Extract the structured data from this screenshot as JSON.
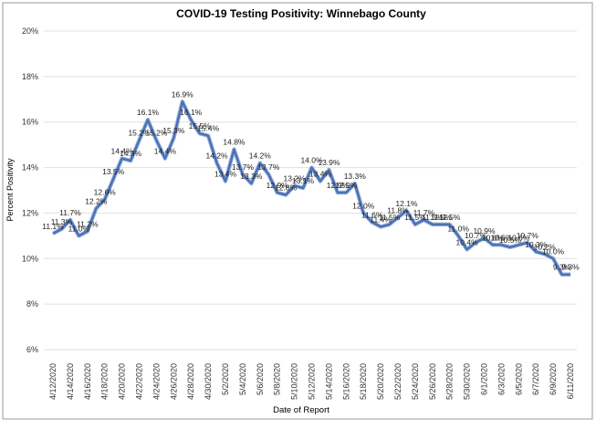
{
  "chart_data": {
    "type": "line",
    "title": "COVID-19 Testing Positivity: Winnebago County",
    "x_label": "Date of Report",
    "y_label": "Percent Positivity",
    "categories": [
      "4/12/2020",
      null,
      "4/14/2020",
      null,
      "4/16/2020",
      null,
      "4/18/2020",
      null,
      "4/20/2020",
      null,
      "4/22/2020",
      null,
      "4/24/2020",
      null,
      "4/26/2020",
      null,
      "4/28/2020",
      null,
      "4/30/2020",
      null,
      "5/2/2020",
      null,
      "5/4/2020",
      null,
      "5/6/2020",
      null,
      "5/8/2020",
      null,
      "5/10/2020",
      null,
      "5/12/2020",
      null,
      "5/14/2020",
      null,
      "5/16/2020",
      null,
      "5/18/2020",
      null,
      "5/20/2020",
      null,
      "5/22/2020",
      null,
      "5/24/2020",
      null,
      "5/26/2020",
      null,
      "5/28/2020",
      null,
      "5/30/2020",
      null,
      "6/1/2020",
      null,
      "6/3/2020",
      null,
      "6/5/2020",
      null,
      "6/7/2020",
      null,
      "6/9/2020",
      null,
      "6/11/2020"
    ],
    "series": [
      {
        "name": "Percent Positivity",
        "color": "#4a72b8",
        "values": [
          11.1,
          11.3,
          11.7,
          11.0,
          11.2,
          12.2,
          12.6,
          13.5,
          14.4,
          14.3,
          15.2,
          16.1,
          15.2,
          14.4,
          15.3,
          16.9,
          16.1,
          15.5,
          15.4,
          14.2,
          13.4,
          14.8,
          13.7,
          13.3,
          14.2,
          13.7,
          12.9,
          12.8,
          13.2,
          13.1,
          14.0,
          13.4,
          13.9,
          12.9,
          12.9,
          13.3,
          12.0,
          11.6,
          11.4,
          11.5,
          11.8,
          12.1,
          11.5,
          11.7,
          11.5,
          11.5,
          11.5,
          11.0,
          10.4,
          10.7,
          10.9,
          10.6,
          10.6,
          10.5,
          10.6,
          10.7,
          10.3,
          10.2,
          10.0,
          9.3,
          9.3
        ],
        "value_labels": [
          "11.1%",
          "11.3%",
          "11.7%",
          "11.0%",
          "11.2%",
          "12.2%",
          "12.6%",
          "13.5%",
          "14.4%",
          "14.3%",
          "15.2%",
          "16.1%",
          "15.2%",
          "14.4%",
          "15.3%",
          "16.9%",
          "16.1%",
          "15.5%",
          "15.4%",
          "14.2%",
          "13.4%",
          "14.8%",
          "13.7%",
          "13.3%",
          "14.2%",
          "13.7%",
          "12.9%",
          "12.8%",
          "13.2%",
          "13.1%",
          "14.0%",
          "13.4%",
          "13.9%",
          "12.9%",
          "12.9%",
          "13.3%",
          "12.0%",
          "11.6%",
          "11.4%",
          "11.5%",
          "11.8%",
          "12.1%",
          "11.5%",
          "11.7%",
          "11.5%",
          "11.5%",
          "11.5%",
          "11.0%",
          "10.4%",
          "10.7%",
          "10.9%",
          "10.6%",
          "10.6%",
          "10.5%",
          "10.6%",
          "10.7%",
          "10.3%",
          "10.2%",
          "10.0%",
          "9.3%",
          "9.3%"
        ]
      }
    ],
    "ylim": [
      6,
      20
    ],
    "yticks": [
      {
        "value": 6,
        "label": "6%"
      },
      {
        "value": 8,
        "label": "8%"
      },
      {
        "value": 10,
        "label": "10%"
      },
      {
        "value": 12,
        "label": "12%"
      },
      {
        "value": 14,
        "label": "14%"
      },
      {
        "value": 16,
        "label": "16%"
      },
      {
        "value": 18,
        "label": "18%"
      },
      {
        "value": 20,
        "label": "20%"
      }
    ],
    "grid": true
  }
}
